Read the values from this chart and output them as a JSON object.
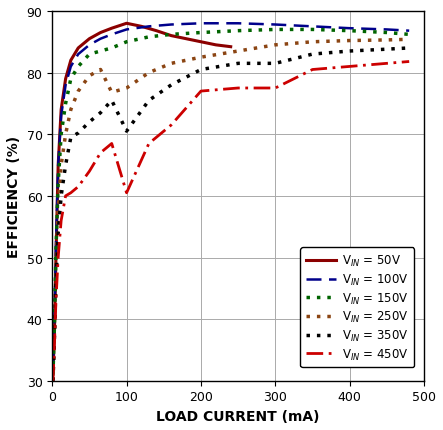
{
  "title": "",
  "xlabel": "LOAD CURRENT (mA)",
  "ylabel": "EFFICIENCY (%)",
  "xlim": [
    0,
    500
  ],
  "ylim": [
    30,
    90
  ],
  "yticks": [
    30,
    40,
    50,
    60,
    70,
    80,
    90
  ],
  "xticks": [
    0,
    100,
    200,
    300,
    400,
    500
  ],
  "series": [
    {
      "label": "V_IN = 50V",
      "color": "#8B0000",
      "linestyle": "solid",
      "linewidth": 2.2,
      "x": [
        1,
        3,
        5,
        8,
        12,
        18,
        25,
        35,
        50,
        65,
        80,
        100,
        120,
        140,
        160,
        180,
        200,
        220,
        240
      ],
      "y": [
        31,
        38,
        50,
        65,
        74,
        79,
        82,
        84,
        85.5,
        86.5,
        87.2,
        88.0,
        87.5,
        86.8,
        86.0,
        85.5,
        85.0,
        84.5,
        84.2
      ]
    },
    {
      "label": "V_IN = 100V",
      "color": "#00008B",
      "linestyle": "dashed",
      "linewidth": 1.8,
      "x": [
        1,
        3,
        5,
        8,
        12,
        18,
        25,
        35,
        50,
        65,
        80,
        100,
        130,
        160,
        200,
        250,
        300,
        350,
        400,
        450,
        480
      ],
      "y": [
        32,
        40,
        52,
        65,
        73,
        78,
        81,
        83,
        84.5,
        85.5,
        86.2,
        87.0,
        87.5,
        87.8,
        88.0,
        88.0,
        87.8,
        87.5,
        87.2,
        87.0,
        86.8
      ]
    },
    {
      "label": "V_IN = 150V",
      "color": "#006400",
      "linestyle": "dotted",
      "linewidth": 2.5,
      "x": [
        1,
        3,
        5,
        8,
        12,
        18,
        25,
        35,
        50,
        65,
        80,
        100,
        130,
        160,
        200,
        250,
        300,
        350,
        400,
        450,
        480
      ],
      "y": [
        31,
        39,
        51,
        62,
        70,
        75,
        79,
        81,
        83.0,
        83.5,
        84.0,
        85.0,
        85.8,
        86.2,
        86.5,
        86.8,
        87.0,
        87.0,
        86.8,
        86.5,
        86.2
      ]
    },
    {
      "label": "V_IN = 250V",
      "color": "#8B4513",
      "linestyle": "dotted",
      "linewidth": 2.5,
      "x": [
        1,
        3,
        5,
        8,
        12,
        18,
        25,
        35,
        50,
        65,
        80,
        100,
        130,
        160,
        200,
        250,
        300,
        350,
        400,
        450,
        480
      ],
      "y": [
        30,
        38,
        48,
        58,
        65,
        70,
        74,
        77,
        79.5,
        80.5,
        76.8,
        77.5,
        80.0,
        81.5,
        82.5,
        83.5,
        84.5,
        85.0,
        85.2,
        85.3,
        85.4
      ]
    },
    {
      "label": "V_IN = 350V",
      "color": "#000000",
      "linestyle": "dotted",
      "linewidth": 2.5,
      "x": [
        1,
        3,
        5,
        8,
        12,
        18,
        25,
        35,
        50,
        65,
        80,
        100,
        130,
        160,
        200,
        250,
        300,
        350,
        400,
        450,
        480
      ],
      "y": [
        30,
        37,
        46,
        54,
        60,
        65,
        69.5,
        70.2,
        72.0,
        73.5,
        75.5,
        70.5,
        75.5,
        78.0,
        80.5,
        81.5,
        81.5,
        83.0,
        83.5,
        83.8,
        84.0
      ]
    },
    {
      "label": "V_IN = 450V",
      "color": "#CC0000",
      "linestyle": "dashdot",
      "linewidth": 2.0,
      "x": [
        1,
        3,
        5,
        8,
        12,
        18,
        25,
        35,
        50,
        65,
        80,
        100,
        130,
        160,
        200,
        250,
        300,
        350,
        400,
        450,
        480
      ],
      "y": [
        30,
        36,
        43,
        50,
        56,
        60,
        60.5,
        61.5,
        64.0,
        67.0,
        68.5,
        60.5,
        68.5,
        71.5,
        77.0,
        77.5,
        77.5,
        80.5,
        81.0,
        81.5,
        81.8
      ]
    }
  ],
  "legend_labels": [
    "V_{IN} = 50V",
    "V_{IN} = 100V",
    "V_{IN} = 150V",
    "V_{IN} = 250V",
    "V_{IN} = 350V",
    "V_{IN} = 450V"
  ],
  "background_color": "#ffffff",
  "grid_color": "#aaaaaa"
}
